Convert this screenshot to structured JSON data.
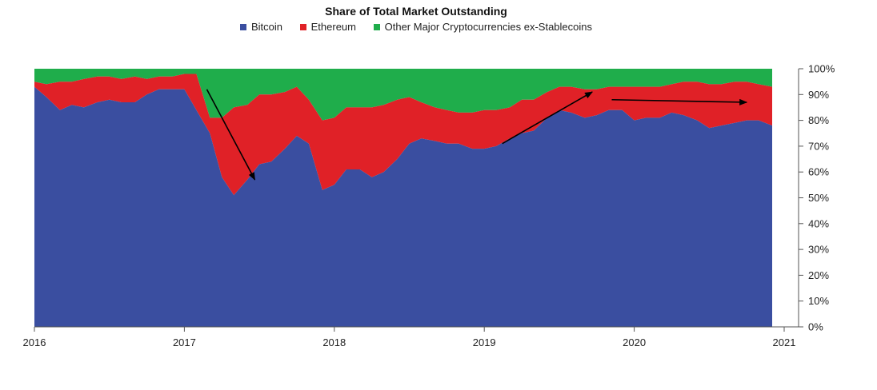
{
  "chart_data": {
    "type": "area",
    "stacked": true,
    "title": "Share of Total Market Outstanding",
    "xlabel": "",
    "ylabel": "",
    "x_ticks": [
      "2016",
      "2017",
      "2018",
      "2019",
      "2020",
      "2021"
    ],
    "y_ticks": [
      "0%",
      "10%",
      "20%",
      "30%",
      "40%",
      "50%",
      "60%",
      "70%",
      "80%",
      "90%",
      "100%"
    ],
    "xlim": [
      2016.0,
      2021.0
    ],
    "ylim": [
      0,
      100
    ],
    "y_axis_position": "right",
    "grid": false,
    "legend_position": "top-center",
    "x": [
      2016.0,
      2016.08,
      2016.17,
      2016.25,
      2016.33,
      2016.42,
      2016.5,
      2016.58,
      2016.67,
      2016.75,
      2016.83,
      2016.92,
      2017.0,
      2017.08,
      2017.17,
      2017.25,
      2017.33,
      2017.42,
      2017.5,
      2017.58,
      2017.67,
      2017.75,
      2017.83,
      2017.92,
      2018.0,
      2018.08,
      2018.17,
      2018.25,
      2018.33,
      2018.42,
      2018.5,
      2018.58,
      2018.67,
      2018.75,
      2018.83,
      2018.92,
      2019.0,
      2019.08,
      2019.17,
      2019.25,
      2019.33,
      2019.42,
      2019.5,
      2019.58,
      2019.67,
      2019.75,
      2019.83,
      2019.92,
      2020.0,
      2020.08,
      2020.17,
      2020.25,
      2020.33,
      2020.42,
      2020.5,
      2020.58,
      2020.67,
      2020.75,
      2020.83,
      2020.92
    ],
    "series": [
      {
        "name": "Bitcoin",
        "color": "#3a4ea0",
        "values": [
          93,
          89,
          84,
          86,
          85,
          87,
          88,
          87,
          87,
          90,
          92,
          92,
          92,
          84,
          75,
          58,
          51,
          57,
          63,
          64,
          69,
          74,
          71,
          53,
          55,
          61,
          61,
          58,
          60,
          65,
          71,
          73,
          72,
          71,
          71,
          69,
          69,
          70,
          73,
          75,
          76,
          81,
          84,
          83,
          81,
          82,
          84,
          84,
          80,
          81,
          81,
          83,
          82,
          80,
          77,
          78,
          79,
          80,
          80,
          78
        ]
      },
      {
        "name": "Ethereum",
        "color": "#e02127",
        "values": [
          2,
          5,
          11,
          9,
          11,
          10,
          9,
          9,
          10,
          6,
          5,
          5,
          6,
          14,
          6,
          23,
          34,
          29,
          27,
          26,
          22,
          19,
          17,
          27,
          26,
          24,
          24,
          27,
          26,
          23,
          18,
          14,
          13,
          13,
          12,
          14,
          15,
          14,
          12,
          13,
          12,
          10,
          9,
          10,
          11,
          10,
          9,
          9,
          13,
          12,
          12,
          11,
          13,
          15,
          17,
          16,
          16,
          15,
          14,
          15
        ]
      },
      {
        "name": "Other Major Cryptocurrencies ex-Stablecoins",
        "color": "#1fad4b",
        "values": [
          5,
          6,
          5,
          5,
          4,
          3,
          3,
          4,
          3,
          4,
          3,
          3,
          2,
          2,
          19,
          19,
          15,
          14,
          10,
          10,
          9,
          7,
          12,
          20,
          19,
          15,
          15,
          15,
          14,
          12,
          11,
          13,
          15,
          16,
          17,
          17,
          16,
          16,
          15,
          12,
          12,
          9,
          7,
          7,
          8,
          8,
          7,
          7,
          7,
          7,
          7,
          6,
          5,
          5,
          6,
          6,
          5,
          5,
          6,
          7
        ]
      }
    ],
    "annotations": [
      {
        "type": "arrow",
        "from": [
          2017.15,
          92
        ],
        "to": [
          2017.47,
          57
        ]
      },
      {
        "type": "arrow",
        "from": [
          2019.12,
          71
        ],
        "to": [
          2019.72,
          91
        ]
      },
      {
        "type": "arrow",
        "from": [
          2019.85,
          88
        ],
        "to": [
          2020.75,
          87
        ]
      }
    ]
  }
}
